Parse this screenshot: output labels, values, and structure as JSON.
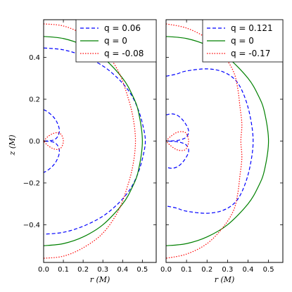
{
  "chart_data": [
    {
      "type": "line",
      "xlabel": "r (M)",
      "ylabel": "z (M)",
      "xlim": [
        0.0,
        0.57
      ],
      "ylim": [
        -0.58,
        0.58
      ],
      "xticks": [
        "0.0",
        "0.1",
        "0.2",
        "0.3",
        "0.4",
        "0.5"
      ],
      "yticks": [
        "−0.4",
        "−0.2",
        "0.0",
        "0.2",
        "0.4"
      ],
      "legend_position": "top-right",
      "series": [
        {
          "name": "q = 0.06",
          "color": "#0000ff",
          "style": "dashed",
          "curves": [
            {
              "r": [
                0.0,
                0.1,
                0.2,
                0.3,
                0.38,
                0.44,
                0.48,
                0.505,
                0.515,
                0.505,
                0.48,
                0.44,
                0.38,
                0.3,
                0.2,
                0.1,
                0.0
              ],
              "z": [
                0.445,
                0.436,
                0.407,
                0.359,
                0.296,
                0.227,
                0.148,
                0.065,
                0.0,
                -0.065,
                -0.148,
                -0.227,
                -0.296,
                -0.359,
                -0.407,
                -0.436,
                -0.445
              ]
            },
            {
              "r": [
                0.0,
                0.02,
                0.05,
                0.07,
                0.08,
                0.07,
                0.05,
                0.02,
                0.0,
                0.02,
                0.05,
                0.07,
                0.08,
                0.07,
                0.05,
                0.02,
                0.0
              ],
              "z": [
                0.15,
                0.14,
                0.115,
                0.085,
                0.05,
                0.02,
                0.005,
                0.001,
                0.0,
                -0.001,
                -0.005,
                -0.02,
                -0.05,
                -0.085,
                -0.115,
                -0.14,
                -0.15
              ]
            }
          ]
        },
        {
          "name": "q = 0",
          "color": "#008000",
          "style": "solid",
          "curves": [
            {
              "r": [
                0.0,
                0.1,
                0.2,
                0.3,
                0.4,
                0.45,
                0.48,
                0.5,
                0.48,
                0.45,
                0.4,
                0.3,
                0.2,
                0.1,
                0.0
              ],
              "z": [
                0.5,
                0.49,
                0.458,
                0.4,
                0.3,
                0.218,
                0.14,
                0.0,
                -0.14,
                -0.218,
                -0.3,
                -0.4,
                -0.458,
                -0.49,
                -0.5
              ]
            }
          ]
        },
        {
          "name": "q = -0.08",
          "color": "#ff0000",
          "style": "dotted",
          "curves": [
            {
              "r": [
                0.0,
                0.1,
                0.2,
                0.3,
                0.38,
                0.43,
                0.455,
                0.465,
                0.455,
                0.43,
                0.38,
                0.3,
                0.2,
                0.1,
                0.0
              ],
              "z": [
                0.56,
                0.55,
                0.51,
                0.44,
                0.33,
                0.2,
                0.1,
                0.0,
                -0.1,
                -0.2,
                -0.33,
                -0.44,
                -0.51,
                -0.55,
                -0.56
              ]
            },
            {
              "r": [
                0.0,
                0.02,
                0.045,
                0.07,
                0.09,
                0.1,
                0.09,
                0.07,
                0.045,
                0.02,
                0.0
              ],
              "z": [
                0.0,
                0.02,
                0.035,
                0.04,
                0.03,
                0.0,
                -0.03,
                -0.04,
                -0.035,
                -0.02,
                0.0
              ]
            }
          ]
        }
      ]
    },
    {
      "type": "line",
      "xlabel": "r (M)",
      "ylabel": "",
      "xlim": [
        0.0,
        0.57
      ],
      "ylim": [
        -0.58,
        0.58
      ],
      "xticks": [
        "0.0",
        "0.1",
        "0.2",
        "0.3",
        "0.4",
        "0.5"
      ],
      "yticks": [],
      "legend_position": "top-right",
      "series": [
        {
          "name": "q = 0.121",
          "color": "#0000ff",
          "style": "dashed",
          "curves": [
            {
              "r": [
                0.0,
                0.05,
                0.1,
                0.2,
                0.28,
                0.34,
                0.38,
                0.41,
                0.425,
                0.41,
                0.38,
                0.34,
                0.28,
                0.2,
                0.1,
                0.05,
                0.0
              ],
              "z": [
                0.31,
                0.32,
                0.335,
                0.345,
                0.33,
                0.29,
                0.22,
                0.12,
                0.0,
                -0.12,
                -0.22,
                -0.29,
                -0.33,
                -0.345,
                -0.335,
                -0.32,
                -0.31
              ]
            },
            {
              "r": [
                0.0,
                0.03,
                0.06,
                0.09,
                0.11,
                0.1,
                0.07,
                0.03,
                0.0,
                0.03,
                0.07,
                0.1,
                0.11,
                0.09,
                0.06,
                0.03,
                0.0
              ],
              "z": [
                0.125,
                0.13,
                0.12,
                0.09,
                0.05,
                0.02,
                0.006,
                0.001,
                0.0,
                -0.001,
                -0.006,
                -0.02,
                -0.05,
                -0.09,
                -0.12,
                -0.13,
                -0.125
              ]
            }
          ]
        },
        {
          "name": "q = 0",
          "color": "#008000",
          "style": "solid",
          "curves": [
            {
              "r": [
                0.0,
                0.1,
                0.2,
                0.3,
                0.4,
                0.45,
                0.48,
                0.5,
                0.48,
                0.45,
                0.4,
                0.3,
                0.2,
                0.1,
                0.0
              ],
              "z": [
                0.5,
                0.49,
                0.458,
                0.4,
                0.3,
                0.218,
                0.14,
                0.0,
                -0.14,
                -0.218,
                -0.3,
                -0.4,
                -0.458,
                -0.49,
                -0.5
              ]
            }
          ]
        },
        {
          "name": "q = -0.17",
          "color": "#ff0000",
          "style": "dotted",
          "curves": [
            {
              "r": [
                0.0,
                0.1,
                0.2,
                0.28,
                0.33,
                0.35,
                0.36,
                0.37,
                0.365,
                0.37,
                0.36,
                0.35,
                0.33,
                0.28,
                0.2,
                0.1,
                0.0
              ],
              "z": [
                0.56,
                0.54,
                0.49,
                0.41,
                0.33,
                0.25,
                0.17,
                0.08,
                0.0,
                -0.08,
                -0.17,
                -0.25,
                -0.33,
                -0.41,
                -0.49,
                -0.54,
                -0.56
              ]
            },
            {
              "r": [
                0.0,
                0.02,
                0.05,
                0.08,
                0.1,
                0.11,
                0.1,
                0.08,
                0.05,
                0.02,
                0.0
              ],
              "z": [
                0.0,
                0.02,
                0.04,
                0.045,
                0.035,
                0.0,
                -0.035,
                -0.045,
                -0.04,
                -0.02,
                0.0
              ]
            }
          ]
        }
      ]
    }
  ]
}
